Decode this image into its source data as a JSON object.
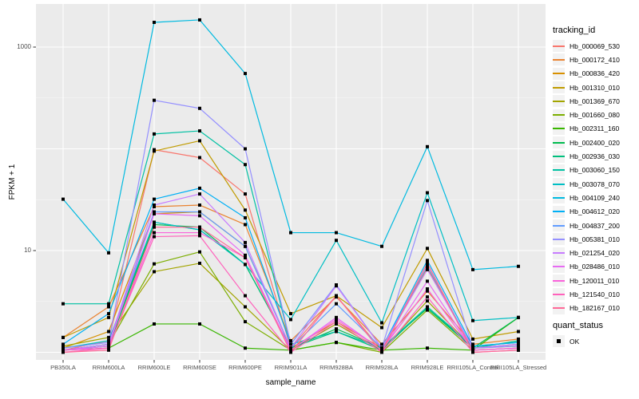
{
  "figure": {
    "y_axis": {
      "title": "FPKM + 1",
      "tick_labels": [
        "1000",
        "10"
      ],
      "tick_values": [
        1000,
        10
      ]
    },
    "x_axis": {
      "title": "sample_name"
    },
    "legend": {
      "tracking_title": "tracking_id",
      "quant_title": "quant_status",
      "quant_items": [
        {
          "label": "OK",
          "marker": "black-filled-square"
        }
      ]
    },
    "colors": {
      "panel_background": "#EBEBEB",
      "gridline": "#FFFFFF",
      "axis_text": "#4D4D4D",
      "point": "#000000"
    }
  },
  "chart_data": {
    "type": "line",
    "title": "",
    "xlabel": "sample_name",
    "ylabel": "FPKM + 1",
    "y_scale": "log10",
    "ylim": [
      0.85,
      2600
    ],
    "yticks": [
      10,
      1000
    ],
    "grid": true,
    "legend_position": "right",
    "point_marker": "filled black square (quant_status = OK) on every data point",
    "categories": [
      "PB350LA",
      "RRIM600LA",
      "RRIM600LE",
      "RRIM600SE",
      "RRIM600PE",
      "RRIM901LA",
      "RRIM928BA",
      "RRIM928LA",
      "RRIM928LE",
      "RRII105LA_Control",
      "RRII105LA_Stressed"
    ],
    "series": [
      {
        "name": "Hb_000069_530",
        "color": "#F8766D",
        "values": [
          1.05,
          1.3,
          98,
          82,
          36,
          1.1,
          3.6,
          1.05,
          7.5,
          1.05,
          1.1
        ]
      },
      {
        "name": "Hb_000172_410",
        "color": "#EA8331",
        "values": [
          1.4,
          2.8,
          27,
          28,
          18,
          1.3,
          3.5,
          1.2,
          4.0,
          1.2,
          1.35
        ]
      },
      {
        "name": "Hb_000836_420",
        "color": "#D89000",
        "values": [
          1.1,
          1.6,
          23,
          24,
          11,
          1.1,
          2.0,
          1.1,
          6.8,
          1.1,
          1.2
        ]
      },
      {
        "name": "Hb_001310_010",
        "color": "#C09B00",
        "values": [
          1.4,
          2.2,
          95,
          120,
          25,
          2.4,
          3.6,
          1.75,
          10.5,
          1.35,
          1.6
        ]
      },
      {
        "name": "Hb_001369_670",
        "color": "#A3A500",
        "values": [
          1.15,
          1.4,
          6.2,
          7.5,
          2.8,
          1.05,
          1.9,
          1.05,
          3.2,
          1.1,
          1.15
        ]
      },
      {
        "name": "Hb_001660_080",
        "color": "#7CAE00",
        "values": [
          1.05,
          1.2,
          7.4,
          9.7,
          2.0,
          1.05,
          1.25,
          1.0,
          2.6,
          1.05,
          1.1
        ]
      },
      {
        "name": "Hb_002311_160",
        "color": "#39B600",
        "values": [
          1.05,
          1.1,
          1.9,
          1.9,
          1.1,
          1.05,
          1.25,
          1.05,
          1.1,
          1.05,
          2.2
        ]
      },
      {
        "name": "Hb_002400_020",
        "color": "#00BB4E",
        "values": [
          1.05,
          1.15,
          18,
          17,
          7.3,
          1.1,
          1.7,
          1.1,
          2.7,
          1.1,
          2.2
        ]
      },
      {
        "name": "Hb_002936_030",
        "color": "#00BF7D",
        "values": [
          1.05,
          1.2,
          19,
          16,
          7.3,
          1.1,
          1.6,
          1.05,
          2.8,
          1.1,
          1.3
        ]
      },
      {
        "name": "Hb_003060_150",
        "color": "#00C1A3",
        "values": [
          3.0,
          3.0,
          140,
          150,
          70,
          1.2,
          1.6,
          1.1,
          2.8,
          1.15,
          1.25
        ]
      },
      {
        "name": "Hb_003078_070",
        "color": "#00BFC4",
        "values": [
          1.1,
          1.3,
          19,
          16,
          7.3,
          2.1,
          12.6,
          1.95,
          37,
          2.05,
          2.2
        ]
      },
      {
        "name": "Hb_004109_240",
        "color": "#00BAE0",
        "values": [
          32,
          9.5,
          1750,
          1850,
          550,
          15,
          15,
          11,
          105,
          6.5,
          7.0
        ]
      },
      {
        "name": "Hb_004612_020",
        "color": "#00B0F6",
        "values": [
          1.2,
          2.4,
          32,
          41,
          21,
          1.2,
          4.6,
          1.1,
          8.0,
          1.15,
          1.25
        ]
      },
      {
        "name": "Hb_004837_200",
        "color": "#619CFF",
        "values": [
          1.05,
          1.2,
          24,
          24,
          11,
          1.1,
          3.0,
          1.1,
          7.0,
          1.1,
          1.2
        ]
      },
      {
        "name": "Hb_005381_010",
        "color": "#9590FF",
        "values": [
          1.1,
          1.25,
          300,
          250,
          100,
          1.2,
          4.6,
          1.1,
          31,
          1.1,
          1.15
        ]
      },
      {
        "name": "Hb_021254_020",
        "color": "#C77CFF",
        "values": [
          1.05,
          1.2,
          28,
          36,
          12,
          1.1,
          4.5,
          1.1,
          6.5,
          1.1,
          1.2
        ]
      },
      {
        "name": "Hb_028486_010",
        "color": "#E76BF3",
        "values": [
          1.05,
          1.15,
          23,
          22,
          9.0,
          1.05,
          2.2,
          1.05,
          5.0,
          1.05,
          1.1
        ]
      },
      {
        "name": "Hb_120011_010",
        "color": "#FA62DB",
        "values": [
          1.05,
          1.1,
          15,
          15,
          8.5,
          1.05,
          2.1,
          1.05,
          4.2,
          1.05,
          1.1
        ]
      },
      {
        "name": "Hb_121540_010",
        "color": "#FF62BC",
        "values": [
          1.0,
          1.1,
          13.7,
          14,
          3.6,
          1.0,
          2.0,
          1.0,
          3.5,
          1.0,
          1.05
        ]
      },
      {
        "name": "Hb_182167_010",
        "color": "#FF6A98",
        "values": [
          1.0,
          1.05,
          17,
          17,
          8.5,
          1.0,
          3.6,
          1.0,
          7.5,
          1.0,
          1.05
        ]
      }
    ]
  }
}
